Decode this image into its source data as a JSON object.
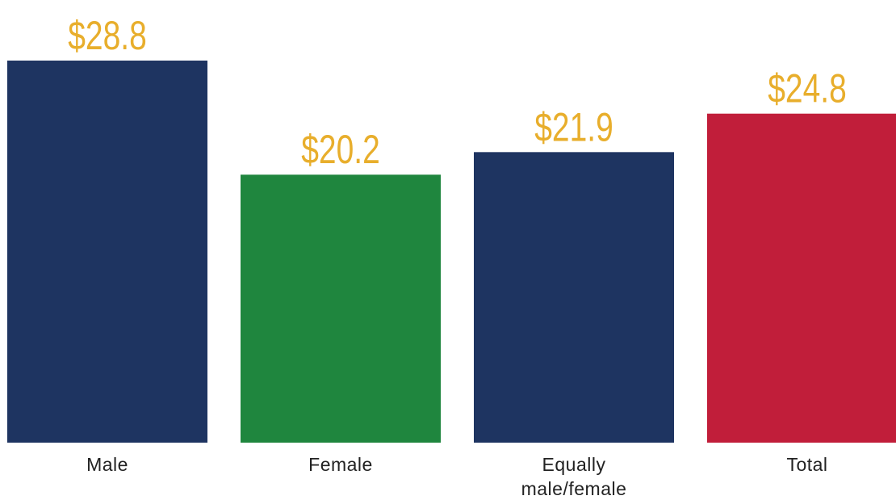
{
  "chart_data": {
    "type": "bar",
    "categories": [
      "Male",
      "Female",
      "Equally male/female",
      "Total"
    ],
    "values": [
      28.8,
      20.2,
      21.9,
      24.8
    ],
    "value_labels": [
      "$28.8",
      "$20.2",
      "$21.9",
      "$24.8"
    ],
    "colors": [
      "#1e3461",
      "#1f863e",
      "#1e3461",
      "#c11e3a"
    ],
    "ylim": [
      0,
      28.8
    ]
  }
}
